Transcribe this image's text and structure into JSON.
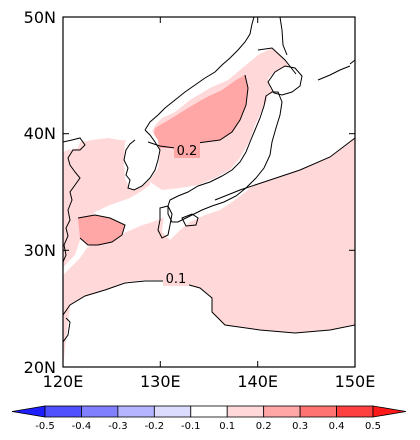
{
  "map": {
    "lon_labels": [
      "120E",
      "130E",
      "140E",
      "150E"
    ],
    "lat_labels": [
      "20N",
      "30N",
      "40N",
      "50N"
    ],
    "lon_range": [
      120,
      150
    ],
    "lat_range": [
      20,
      50
    ]
  },
  "contour_labels": [
    "0.2",
    "0.1"
  ],
  "colorbar": {
    "labels": [
      "-0.5",
      "-0.4",
      "-0.3",
      "-0.2",
      "-0.1",
      "0.1",
      "0.2",
      "0.3",
      "0.4",
      "0.5"
    ],
    "colors": [
      "#1e1eff",
      "#5050ff",
      "#8080ff",
      "#b4b4ff",
      "#dcdcff",
      "#ffffff",
      "#ffd9d9",
      "#ffa6a6",
      "#ff7373",
      "#ff4040",
      "#ff1a1a"
    ]
  },
  "colors": {
    "shade_low": "#ffd9d9",
    "shade_mid": "#ffa6a6",
    "coast": "#000000"
  }
}
